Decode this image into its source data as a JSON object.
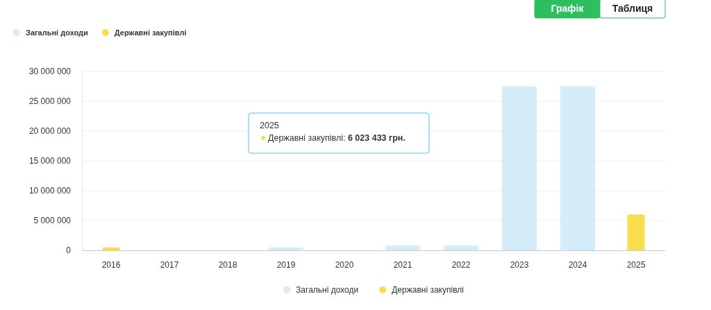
{
  "chart_data": {
    "type": "bar",
    "categories": [
      "2016",
      "2017",
      "2018",
      "2019",
      "2020",
      "2021",
      "2022",
      "2023",
      "2024",
      "2025"
    ],
    "series": [
      {
        "name": "Загальні доходи",
        "color": "#d4edf9",
        "values": [
          0,
          0,
          0,
          500000,
          0,
          800000,
          800000,
          27500000,
          27500000,
          0
        ]
      },
      {
        "name": "Державні закупівлі",
        "color": "#f7dd4f",
        "values": [
          500000,
          0,
          0,
          0,
          0,
          0,
          0,
          0,
          0,
          6023433
        ]
      }
    ],
    "ylim": [
      0,
      30000000
    ],
    "yticks": [
      {
        "value": 0,
        "label": "0"
      },
      {
        "value": 5000000,
        "label": "5 000 000"
      },
      {
        "value": 10000000,
        "label": "10 000 000"
      },
      {
        "value": 15000000,
        "label": "15 000 000"
      },
      {
        "value": 20000000,
        "label": "20 000 000"
      },
      {
        "value": 25000000,
        "label": "25 000 000"
      },
      {
        "value": 30000000,
        "label": "30 000 000"
      }
    ],
    "grid": "y",
    "legend": "bottom",
    "annotations": [
      "Графік",
      "Таблиця",
      "2025\nДержавні закупівлі: 6 023 433 грн."
    ]
  }
}
